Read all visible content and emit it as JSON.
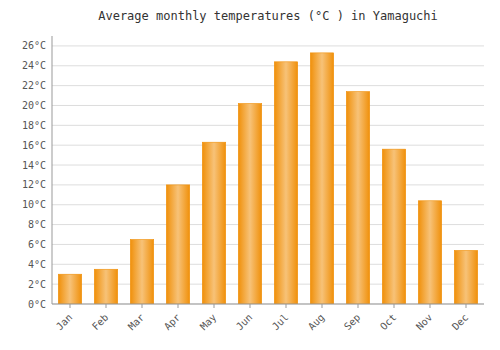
{
  "chart_data": {
    "type": "bar",
    "title": "Average monthly temperatures (°C ) in Yamaguchi",
    "categories": [
      "Jan",
      "Feb",
      "Mar",
      "Apr",
      "May",
      "Jun",
      "Jul",
      "Aug",
      "Sep",
      "Oct",
      "Nov",
      "Dec"
    ],
    "values": [
      3.0,
      3.5,
      6.5,
      12.0,
      16.3,
      20.2,
      24.4,
      25.3,
      21.4,
      15.6,
      10.4,
      5.4
    ],
    "color": "#F0900A",
    "ylim": [
      0,
      27
    ],
    "yticks": [
      {
        "value": 0,
        "label": "0°C"
      },
      {
        "value": 2,
        "label": "2°C"
      },
      {
        "value": 4,
        "label": "4°C"
      },
      {
        "value": 6,
        "label": "6°C"
      },
      {
        "value": 8,
        "label": "8°C"
      },
      {
        "value": 10,
        "label": "10°C"
      },
      {
        "value": 12,
        "label": "12°C"
      },
      {
        "value": 14,
        "label": "14°C"
      },
      {
        "value": 16,
        "label": "16°C"
      },
      {
        "value": 18,
        "label": "18°C"
      },
      {
        "value": 20,
        "label": "20°C"
      },
      {
        "value": 22,
        "label": "22°C"
      },
      {
        "value": 24,
        "label": "24°C"
      },
      {
        "value": 26,
        "label": "26°C"
      }
    ],
    "grid": true
  }
}
